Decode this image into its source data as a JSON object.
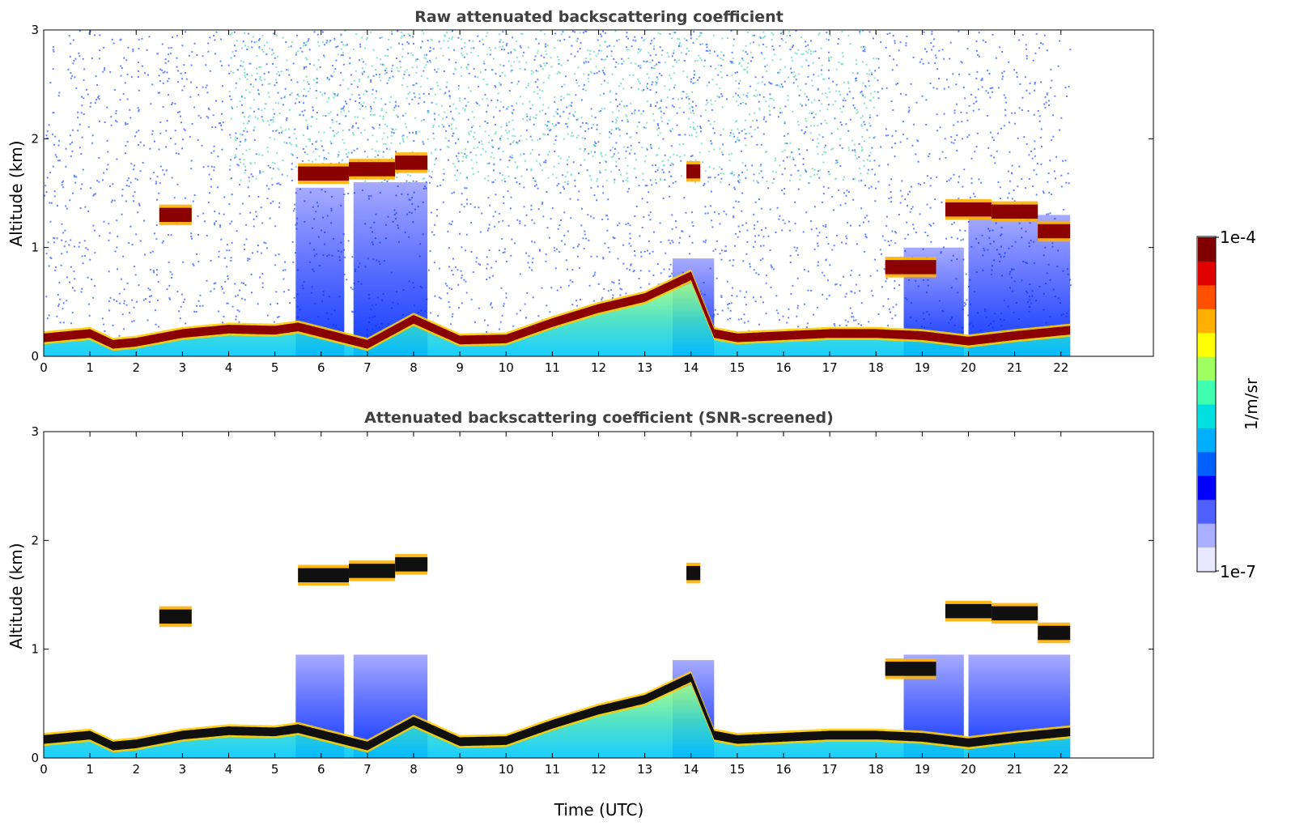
{
  "chart_data": [
    {
      "type": "heatmap",
      "title": "Raw attenuated backscattering coefficient",
      "xlabel": "",
      "ylabel": "Altitude (km)",
      "xlim": [
        0,
        24
      ],
      "ylim": [
        0,
        3
      ],
      "x_ticks": [
        0,
        1,
        2,
        3,
        4,
        5,
        6,
        7,
        8,
        9,
        10,
        11,
        12,
        13,
        14,
        15,
        16,
        17,
        18,
        19,
        20,
        21,
        22
      ],
      "y_ticks": [
        0,
        1,
        2,
        3
      ],
      "data_extent_x": [
        0,
        22.2
      ],
      "colormap": "jet",
      "color_scale": "log",
      "boundary_layer_top_km": [
        [
          0,
          0.18
        ],
        [
          1,
          0.22
        ],
        [
          1.5,
          0.12
        ],
        [
          2,
          0.14
        ],
        [
          3,
          0.22
        ],
        [
          4,
          0.26
        ],
        [
          5,
          0.25
        ],
        [
          5.5,
          0.28
        ],
        [
          7,
          0.12
        ],
        [
          8,
          0.35
        ],
        [
          9,
          0.16
        ],
        [
          10,
          0.17
        ],
        [
          11,
          0.32
        ],
        [
          12,
          0.45
        ],
        [
          13,
          0.55
        ],
        [
          14,
          0.75
        ],
        [
          14.5,
          0.22
        ],
        [
          15,
          0.18
        ],
        [
          16,
          0.2
        ],
        [
          17,
          0.22
        ],
        [
          18,
          0.22
        ],
        [
          19,
          0.2
        ],
        [
          20,
          0.15
        ],
        [
          21,
          0.2
        ],
        [
          22.2,
          0.25
        ]
      ],
      "cloud_layers": [
        {
          "x": [
            5.5,
            6.6
          ],
          "altitude_km": 1.68
        },
        {
          "x": [
            6.6,
            7.6
          ],
          "altitude_km": 1.72
        },
        {
          "x": [
            7.6,
            8.3
          ],
          "altitude_km": 1.78
        },
        {
          "x": [
            2.5,
            3.2
          ],
          "altitude_km": 1.3
        },
        {
          "x": [
            13.9,
            14.2
          ],
          "altitude_km": 1.7
        },
        {
          "x": [
            18.2,
            19.3
          ],
          "altitude_km": 0.82
        },
        {
          "x": [
            19.5,
            20.5
          ],
          "altitude_km": 1.35
        },
        {
          "x": [
            20.5,
            21.5
          ],
          "altitude_km": 1.33
        },
        {
          "x": [
            21.5,
            22.2
          ],
          "altitude_km": 1.15
        }
      ],
      "grid": false
    },
    {
      "type": "heatmap",
      "title": "Attenuated backscattering coefficient (SNR-screened)",
      "xlabel": "Time (UTC)",
      "ylabel": "Altitude (km)",
      "xlim": [
        0,
        24
      ],
      "ylim": [
        0,
        3
      ],
      "x_ticks": [
        0,
        1,
        2,
        3,
        4,
        5,
        6,
        7,
        8,
        9,
        10,
        11,
        12,
        13,
        14,
        15,
        16,
        17,
        18,
        19,
        20,
        21,
        22
      ],
      "y_ticks": [
        0,
        1,
        2,
        3
      ],
      "data_extent_x": [
        0,
        22.2
      ],
      "colormap": "jet",
      "color_scale": "log",
      "saturated_color": "#000000",
      "grid": false
    }
  ],
  "colorbar": {
    "label": "1/m/sr",
    "max_label": "1e-4",
    "min_label": "1e-7",
    "colors": [
      "#e8e8ff",
      "#aab0ff",
      "#5060ff",
      "#0000ff",
      "#0060ff",
      "#00b0ff",
      "#00e0e0",
      "#40ffb0",
      "#a0ff60",
      "#ffff00",
      "#ffb000",
      "#ff5000",
      "#e00000",
      "#800000"
    ]
  }
}
